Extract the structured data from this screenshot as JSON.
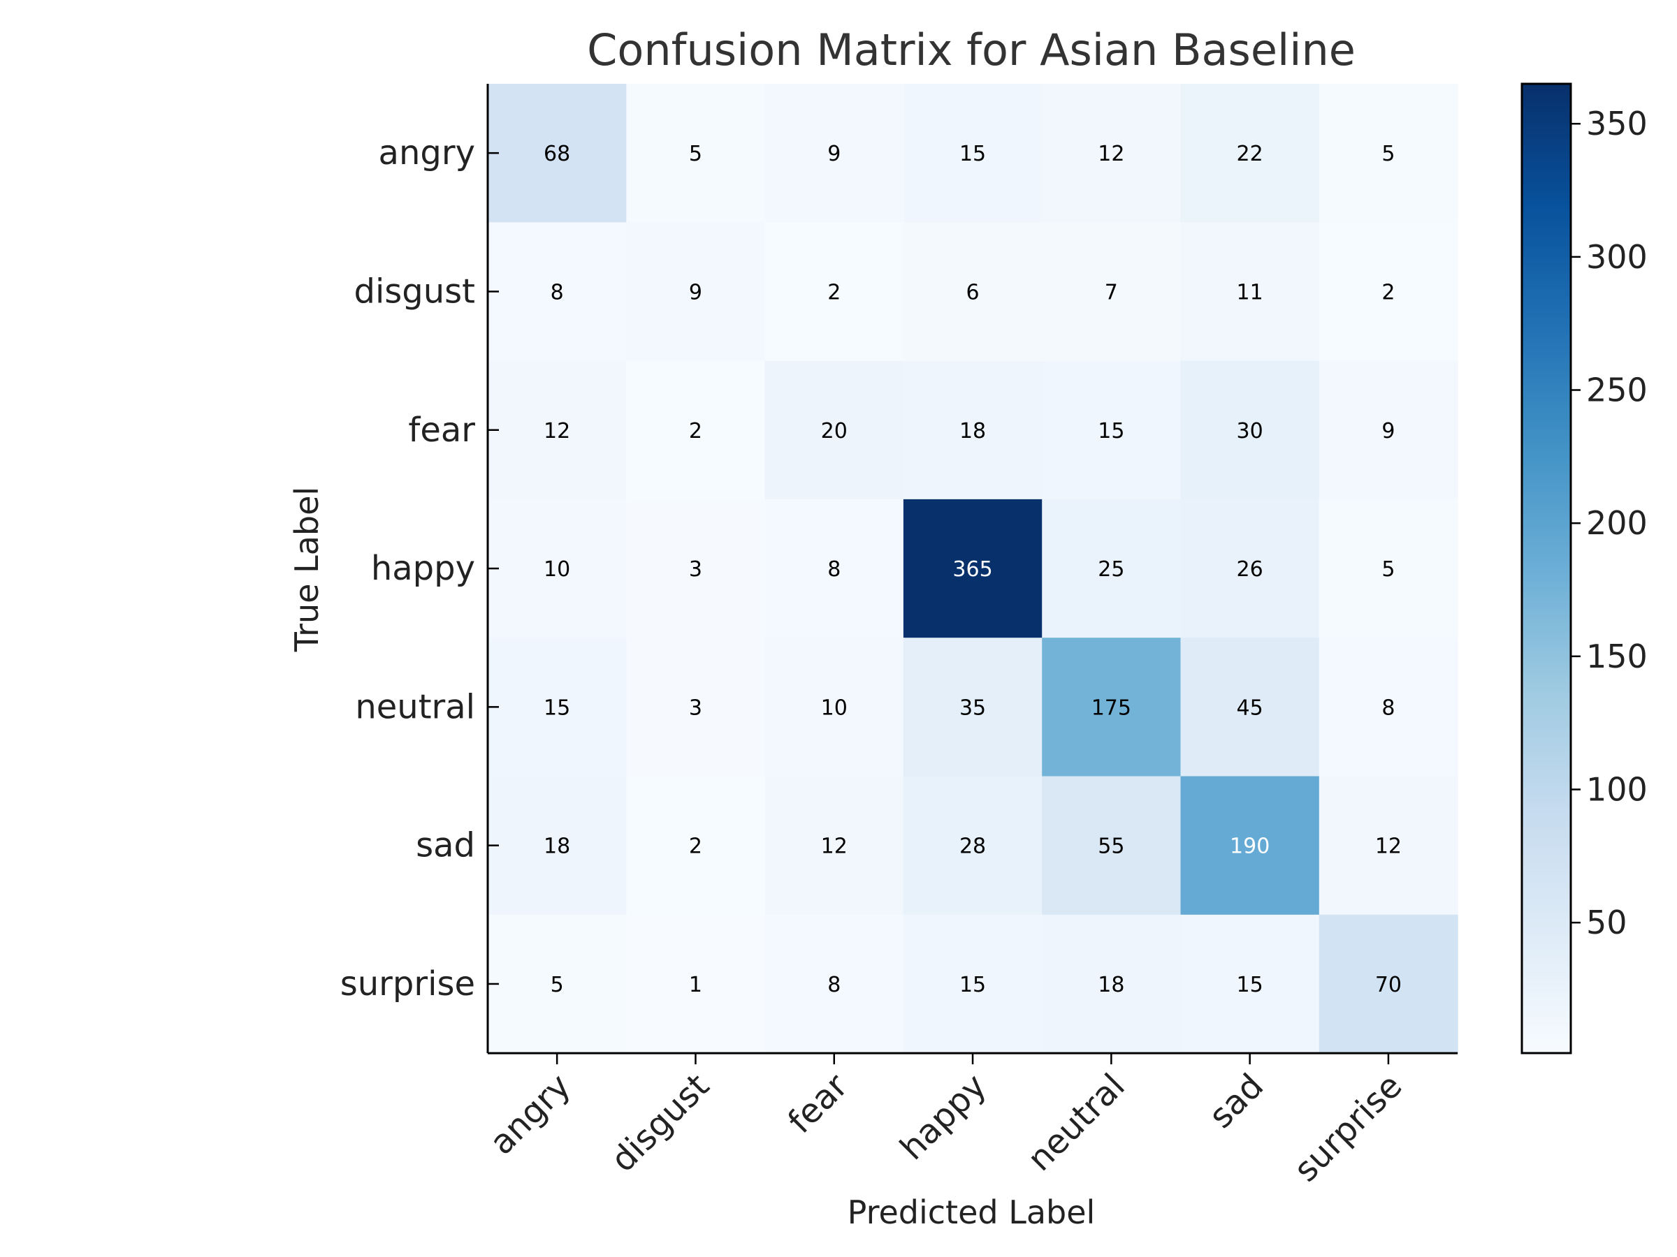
{
  "chart_data": {
    "type": "heatmap",
    "title": "Confusion Matrix for Asian Baseline",
    "xlabel": "Predicted Label",
    "ylabel": "True Label",
    "x_categories": [
      "angry",
      "disgust",
      "fear",
      "happy",
      "neutral",
      "sad",
      "surprise"
    ],
    "y_categories": [
      "angry",
      "disgust",
      "fear",
      "happy",
      "neutral",
      "sad",
      "surprise"
    ],
    "values": [
      [
        68,
        5,
        9,
        15,
        12,
        22,
        5
      ],
      [
        8,
        9,
        2,
        6,
        7,
        11,
        2
      ],
      [
        12,
        2,
        20,
        18,
        15,
        30,
        9
      ],
      [
        10,
        3,
        8,
        365,
        25,
        26,
        5
      ],
      [
        15,
        3,
        10,
        35,
        175,
        45,
        8
      ],
      [
        18,
        2,
        12,
        28,
        55,
        190,
        12
      ],
      [
        5,
        1,
        8,
        15,
        18,
        15,
        70
      ]
    ],
    "colormap": "Blues",
    "colorbar": {
      "range": [
        1,
        365
      ],
      "ticks": [
        50,
        100,
        150,
        200,
        250,
        300,
        350
      ]
    },
    "grid": false
  }
}
